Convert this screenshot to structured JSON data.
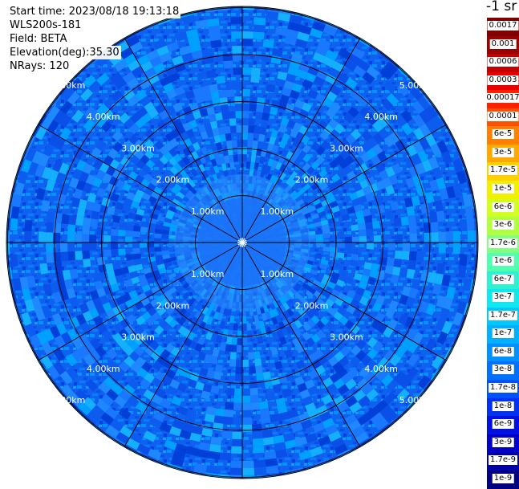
{
  "header": {
    "start_time": "Start time: 2023/08/18 19:13:18",
    "instrument": "WLS200s-181",
    "field": "Field: BETA",
    "elevation_label": "Elevation(deg):",
    "elevation_value": "35.30",
    "nrays": "NRays: 120"
  },
  "colorbar": {
    "title": "-1 sr",
    "labels_top_to_bottom": [
      "0.0017",
      "0.001",
      "0.0006",
      "0.0003",
      "0.00017",
      "0.0001",
      "6e-5",
      "3e-5",
      "1.7e-5",
      "1e-5",
      "6e-6",
      "3e-6",
      "1.7e-6",
      "1e-6",
      "6e-7",
      "3e-7",
      "1.7e-7",
      "1e-7",
      "6e-8",
      "3e-8",
      "1.7e-8",
      "1e-8",
      "6e-9",
      "3e-9",
      "1.7e-9",
      "1e-9"
    ],
    "colors_top_to_bottom": [
      "#7f0000",
      "#9a0000",
      "#c40000",
      "#e80000",
      "#ff2000",
      "#ff5000",
      "#ff8000",
      "#ffa800",
      "#ffd000",
      "#f0f000",
      "#d0ff20",
      "#b0ff40",
      "#80ff80",
      "#50ffb0",
      "#30f0d0",
      "#10e8f0",
      "#00c8ff",
      "#00b0ff",
      "#0090ff",
      "#0070ff",
      "#0050ff",
      "#0030f0",
      "#0010e0",
      "#0000c8",
      "#0000a8",
      "#000080"
    ]
  },
  "chart_data": {
    "type": "heatmap",
    "projection": "polar (PPI scan)",
    "field": "BETA",
    "units": "-1 sr",
    "scale": "log",
    "range_rings_km": [
      1,
      2,
      3,
      4,
      5
    ],
    "range_labels": [
      "1.00km",
      "2.00km",
      "3.00km",
      "4.00km",
      "5.00km"
    ],
    "max_range_km": 5.0,
    "n_rays": 120,
    "azimuth_gridlines_deg": [
      0,
      30,
      60,
      90,
      120,
      150,
      180,
      210,
      240,
      270,
      300,
      330
    ],
    "observed_value_range": [
      "1.7e-8",
      "1e-7"
    ],
    "dominant_value": "3e-8",
    "legend_position": "right"
  }
}
